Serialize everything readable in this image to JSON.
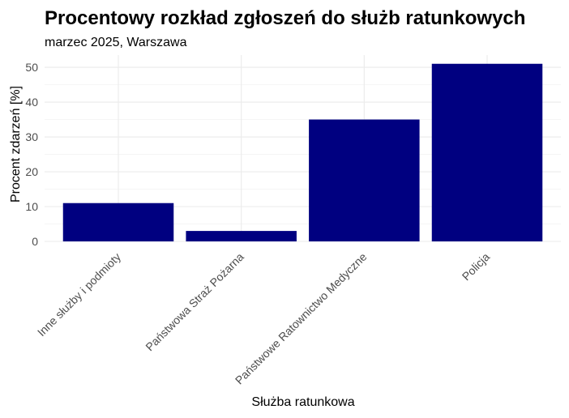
{
  "chart_data": {
    "type": "bar",
    "title": "Procentowy rozkład zgłoszeń do służb ratunkowych",
    "subtitle": "marzec 2025, Warszawa",
    "xlabel": "Służba ratunkowa",
    "ylabel": "Procent zdarzeń [%]",
    "categories": [
      "Inne służby i podmioty",
      "Państwowa Straż Pożarna",
      "Państwowe Ratownictwo Medyczne",
      "Policja"
    ],
    "values": [
      11,
      3,
      35,
      51
    ],
    "ylim": [
      0,
      53.5
    ],
    "yticks": [
      0,
      10,
      20,
      30,
      40,
      50
    ],
    "bar_color": "#000080",
    "grid": true,
    "legend": "none"
  }
}
